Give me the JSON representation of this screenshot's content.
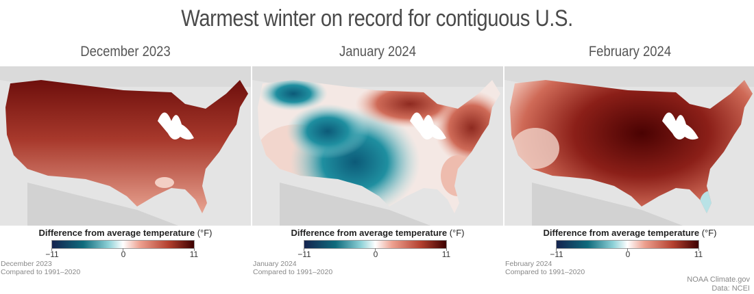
{
  "title": "Warmest winter on record for contiguous U.S.",
  "legend": {
    "label": "Difference from average temperature",
    "unit": "(°F)",
    "min_label": "−11",
    "mid_label": "0",
    "max_label": "11",
    "colors": [
      "#14234e",
      "#0f6b7c",
      "#8fd2d8",
      "#ffffff",
      "#eda08f",
      "#b4402f",
      "#3d0000"
    ]
  },
  "panels": [
    {
      "title": "December 2023",
      "caption_line1": "December 2023",
      "caption_line2": "Compared to 1991–2020",
      "anomaly_pattern": "warm-everywhere-strongest-north"
    },
    {
      "title": "January 2024",
      "caption_line1": "January 2024",
      "caption_line2": "Compared to 1991–2020",
      "anomaly_pattern": "cold-west-and-central-warm-northeast"
    },
    {
      "title": "February 2024",
      "caption_line1": "February 2024",
      "caption_line2": "Compared to 1991–2020",
      "anomaly_pattern": "warm-everywhere-strongest-midwest"
    }
  ],
  "credit": {
    "line1": "NOAA Climate.gov",
    "line2": "Data: NCEI"
  }
}
